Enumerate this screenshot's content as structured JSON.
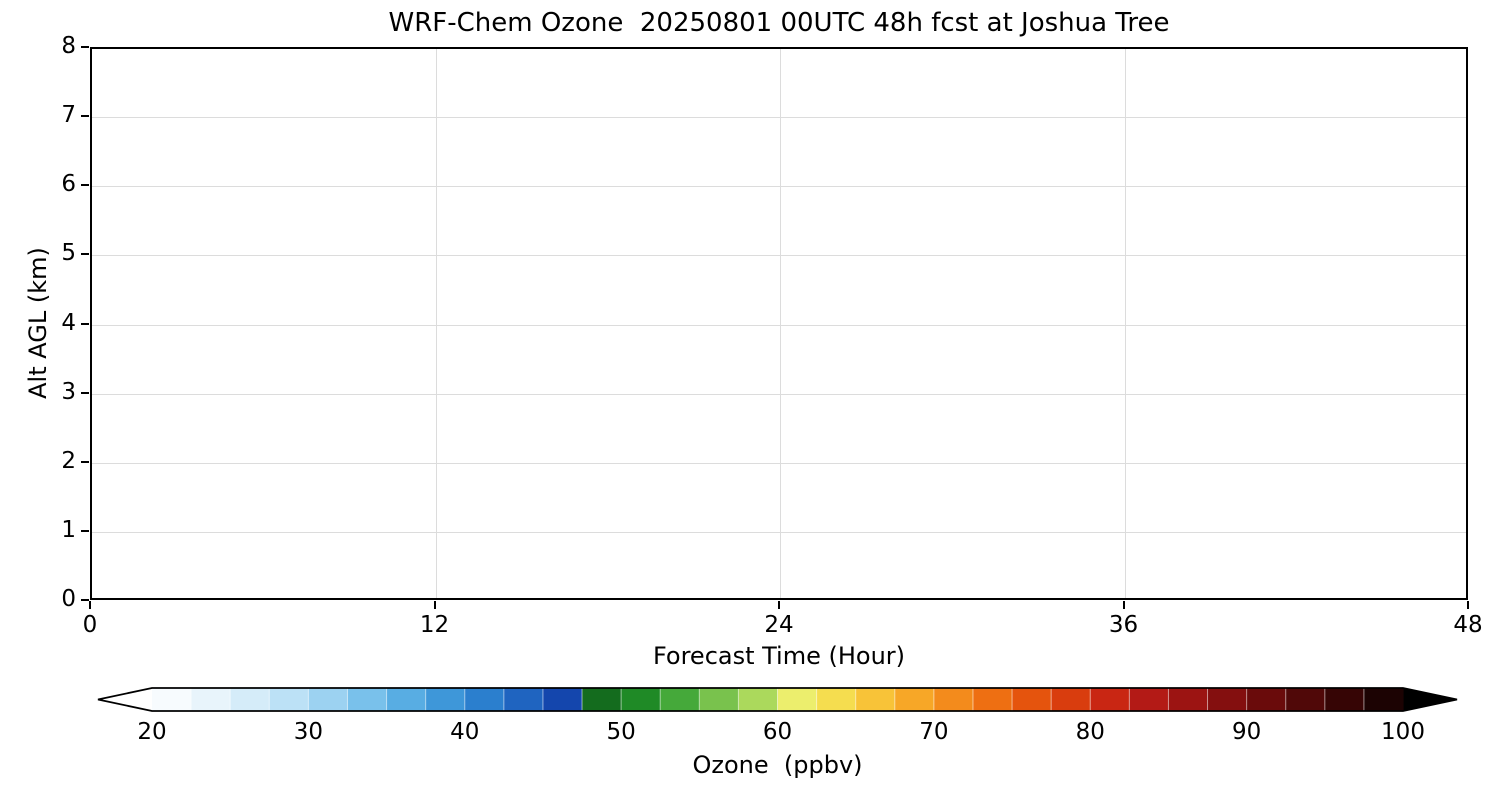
{
  "chart_data": {
    "type": "heatmap",
    "title": "WRF-Chem Ozone  20250801 00UTC 48h fcst at Joshua Tree",
    "xlabel": "Forecast Time (Hour)",
    "ylabel": "Alt AGL (km)",
    "xlim": [
      0,
      48
    ],
    "ylim": [
      0,
      8
    ],
    "x_ticks": [
      0,
      12,
      24,
      36,
      48
    ],
    "y_ticks": [
      0,
      1,
      2,
      3,
      4,
      5,
      6,
      7,
      8
    ],
    "grid": true,
    "values": [],
    "colorbar": {
      "label": "Ozone  (ppbv)",
      "ticks": [
        20,
        30,
        40,
        50,
        60,
        70,
        80,
        90,
        100
      ],
      "range": [
        20,
        100
      ],
      "extend": "both",
      "under_color": "#ffffff",
      "over_color": "#000000",
      "segment_step": 2.5,
      "segment_colors": [
        "#f7fbfe",
        "#e8f4fb",
        "#d5ecf9",
        "#bce1f6",
        "#9cd2f1",
        "#79c1eb",
        "#58ade3",
        "#3e97d9",
        "#2b7fce",
        "#1f64c0",
        "#1446ad",
        "#146c1e",
        "#1f8a26",
        "#45a93a",
        "#79c24d",
        "#abd95c",
        "#ecee6d",
        "#f5dd4f",
        "#f8c338",
        "#f7a727",
        "#f38b1c",
        "#ee6f12",
        "#e5540d",
        "#d93d0e",
        "#c92613",
        "#b31a16",
        "#9c1412",
        "#840f0f",
        "#6a0b0b",
        "#500808",
        "#360505",
        "#1c0303"
      ]
    }
  }
}
